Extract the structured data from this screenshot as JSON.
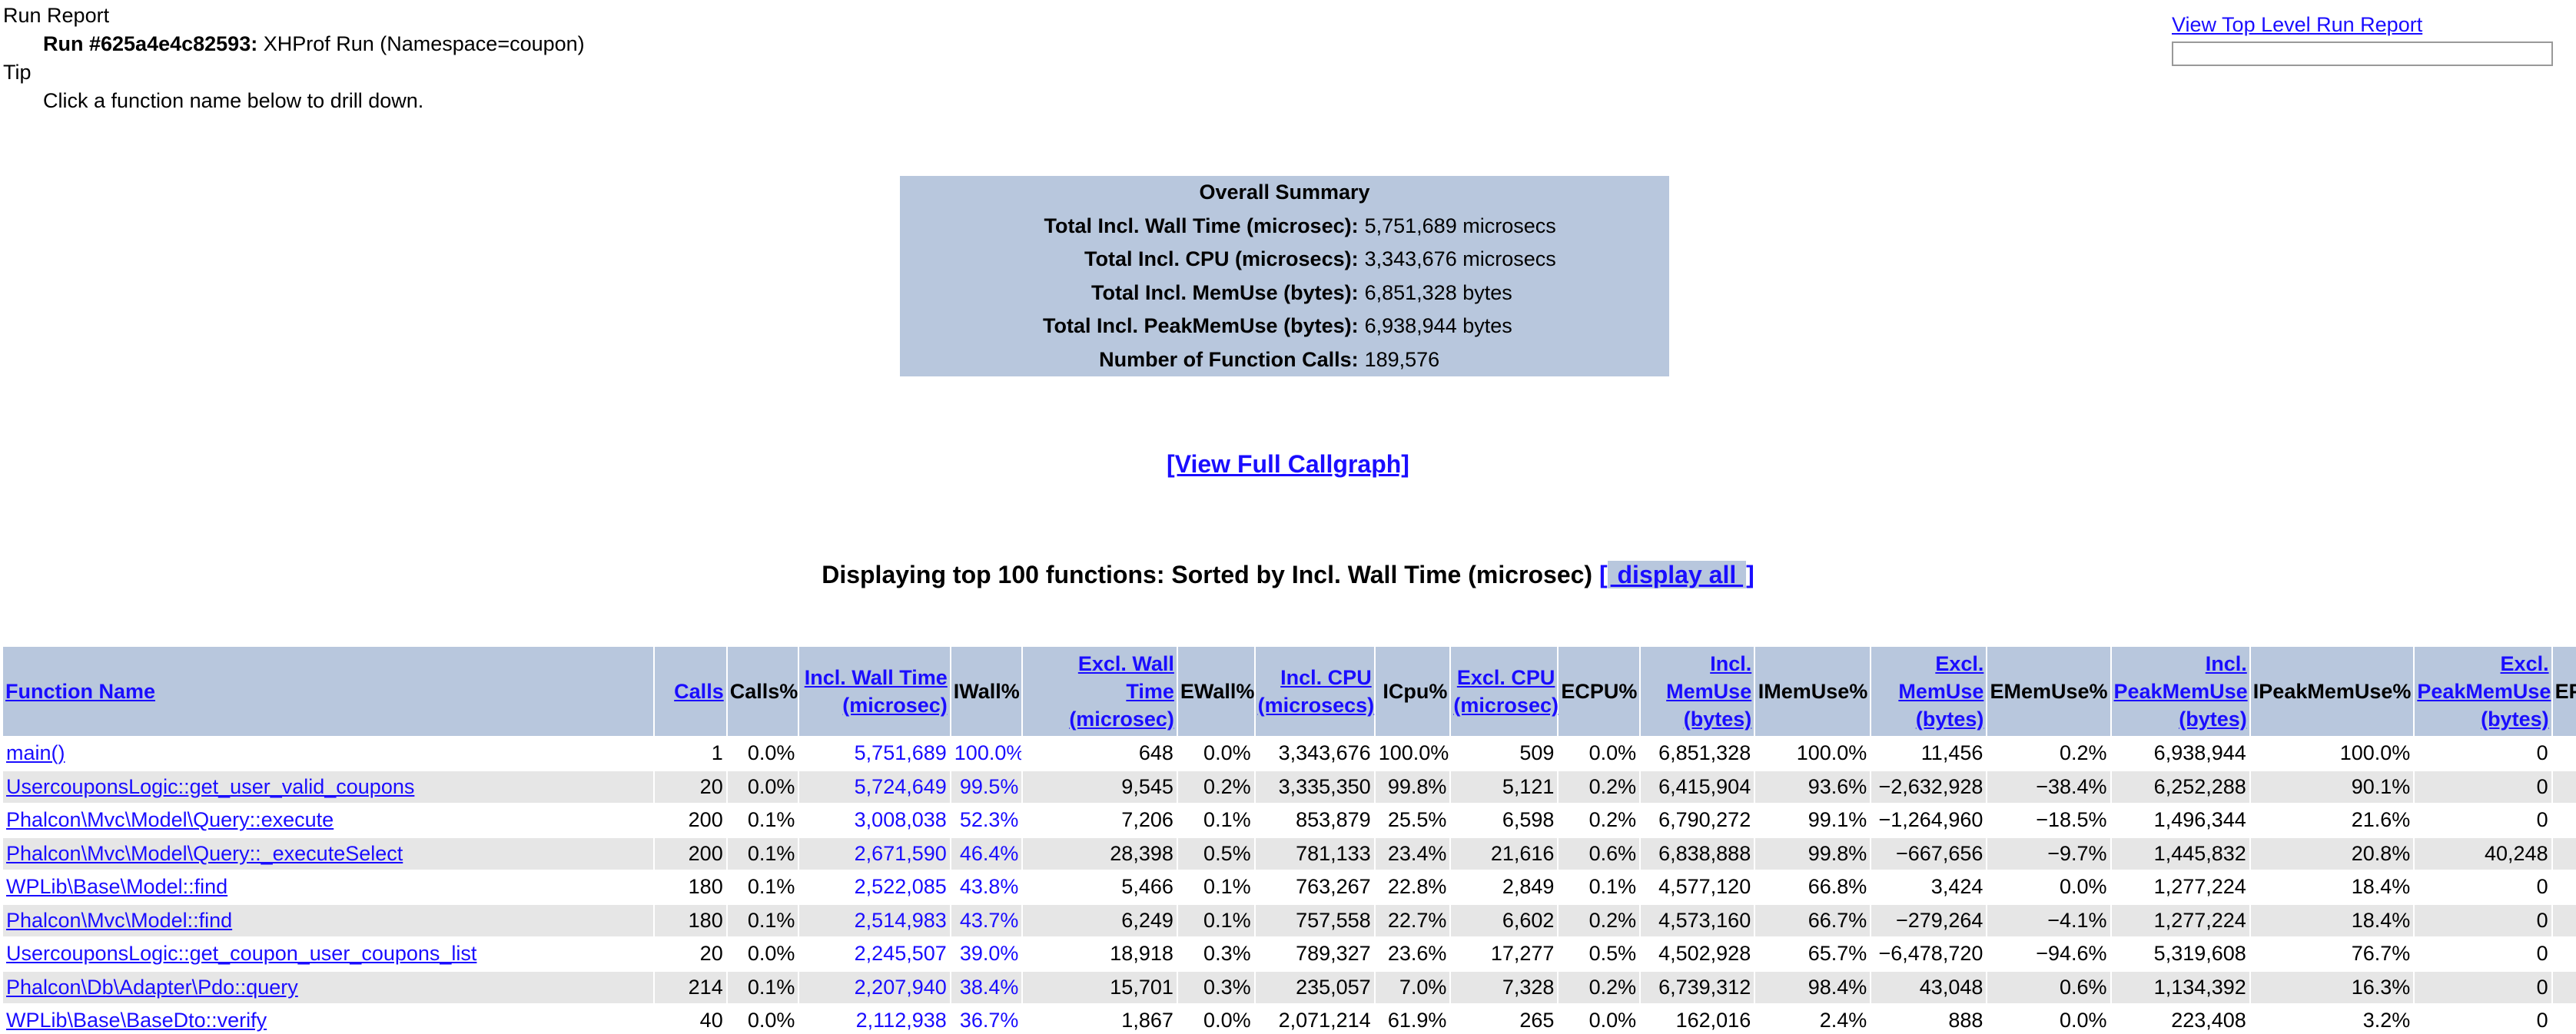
{
  "run_report": {
    "heading": "Run Report",
    "run_id": "Run #625a4e4c82593:",
    "run_desc": " XHProf Run (Namespace=coupon)",
    "tip_heading": "Tip",
    "tip_text": "Click a function name below to drill down."
  },
  "top_right": {
    "link": "View Top Level Run Report",
    "search_value": ""
  },
  "summary": {
    "title": "Overall Summary",
    "rows": [
      {
        "label": "Total Incl. Wall Time (microsec):",
        "value": "5,751,689 microsecs"
      },
      {
        "label": "Total Incl. CPU (microsecs):",
        "value": "3,343,676 microsecs"
      },
      {
        "label": "Total Incl. MemUse (bytes):",
        "value": "6,851,328 bytes"
      },
      {
        "label": "Total Incl. PeakMemUse (bytes):",
        "value": "6,938,944 bytes"
      },
      {
        "label": "Number of Function Calls:",
        "value": "189,576"
      }
    ]
  },
  "callgraph_link": "[View Full Callgraph]",
  "display_line": {
    "text": "Displaying top 100 functions: Sorted by Incl. Wall Time (microsec) ",
    "open": "[",
    "link": " display all ",
    "close": "]"
  },
  "table": {
    "headers": [
      {
        "lines": [
          "Function Name"
        ],
        "link": true,
        "align": "left"
      },
      {
        "lines": [
          "Calls"
        ],
        "link": true,
        "align": "right"
      },
      {
        "lines": [
          "Calls%"
        ],
        "link": false,
        "align": "right"
      },
      {
        "lines": [
          "Incl. Wall Time",
          "(microsec)"
        ],
        "link": true,
        "align": "right"
      },
      {
        "lines": [
          "IWall%"
        ],
        "link": false,
        "align": "right"
      },
      {
        "lines": [
          "Excl. Wall Time",
          "(microsec)"
        ],
        "link": true,
        "align": "right"
      },
      {
        "lines": [
          "EWall%"
        ],
        "link": false,
        "align": "right"
      },
      {
        "lines": [
          "Incl. CPU",
          "(microsecs)"
        ],
        "link": true,
        "align": "right"
      },
      {
        "lines": [
          "ICpu%"
        ],
        "link": false,
        "align": "right"
      },
      {
        "lines": [
          "Excl. CPU",
          "(microsec)"
        ],
        "link": true,
        "align": "right"
      },
      {
        "lines": [
          "ECPU%"
        ],
        "link": false,
        "align": "right"
      },
      {
        "lines": [
          "Incl.",
          "MemUse",
          "(bytes)"
        ],
        "link": true,
        "align": "right"
      },
      {
        "lines": [
          "IMemUse%"
        ],
        "link": false,
        "align": "right"
      },
      {
        "lines": [
          "Excl.",
          "MemUse",
          "(bytes)"
        ],
        "link": true,
        "align": "right"
      },
      {
        "lines": [
          "EMemUse%"
        ],
        "link": false,
        "align": "right"
      },
      {
        "lines": [
          "Incl.",
          "PeakMemUse",
          "(bytes)"
        ],
        "link": true,
        "align": "right"
      },
      {
        "lines": [
          "IPeakMemUse%"
        ],
        "link": false,
        "align": "right"
      },
      {
        "lines": [
          "Excl.",
          "PeakMemUse",
          "(bytes)"
        ],
        "link": true,
        "align": "right"
      },
      {
        "lines": [
          "EP"
        ],
        "link": false,
        "align": "left"
      }
    ],
    "rows": [
      [
        "main()",
        "1",
        "0.0%",
        "5,751,689",
        "100.0%",
        "648",
        "0.0%",
        "3,343,676",
        "100.0%",
        "509",
        "0.0%",
        "6,851,328",
        "100.0%",
        "11,456",
        "0.2%",
        "6,938,944",
        "100.0%",
        "0",
        ""
      ],
      [
        "UsercouponsLogic::get_user_valid_coupons",
        "20",
        "0.0%",
        "5,724,649",
        "99.5%",
        "9,545",
        "0.2%",
        "3,335,350",
        "99.8%",
        "5,121",
        "0.2%",
        "6,415,904",
        "93.6%",
        "−2,632,928",
        "−38.4%",
        "6,252,288",
        "90.1%",
        "0",
        ""
      ],
      [
        "Phalcon\\Mvc\\Model\\Query::execute",
        "200",
        "0.1%",
        "3,008,038",
        "52.3%",
        "7,206",
        "0.1%",
        "853,879",
        "25.5%",
        "6,598",
        "0.2%",
        "6,790,272",
        "99.1%",
        "−1,264,960",
        "−18.5%",
        "1,496,344",
        "21.6%",
        "0",
        ""
      ],
      [
        "Phalcon\\Mvc\\Model\\Query::_executeSelect",
        "200",
        "0.1%",
        "2,671,590",
        "46.4%",
        "28,398",
        "0.5%",
        "781,133",
        "23.4%",
        "21,616",
        "0.6%",
        "6,838,888",
        "99.8%",
        "−667,656",
        "−9.7%",
        "1,445,832",
        "20.8%",
        "40,248",
        ""
      ],
      [
        "WPLib\\Base\\Model::find",
        "180",
        "0.1%",
        "2,522,085",
        "43.8%",
        "5,466",
        "0.1%",
        "763,267",
        "22.8%",
        "2,849",
        "0.1%",
        "4,577,120",
        "66.8%",
        "3,424",
        "0.0%",
        "1,277,224",
        "18.4%",
        "0",
        ""
      ],
      [
        "Phalcon\\Mvc\\Model::find",
        "180",
        "0.1%",
        "2,514,983",
        "43.7%",
        "6,249",
        "0.1%",
        "757,558",
        "22.7%",
        "6,602",
        "0.2%",
        "4,573,160",
        "66.7%",
        "−279,264",
        "−4.1%",
        "1,277,224",
        "18.4%",
        "0",
        ""
      ],
      [
        "UsercouponsLogic::get_coupon_user_coupons_list",
        "20",
        "0.0%",
        "2,245,507",
        "39.0%",
        "18,918",
        "0.3%",
        "789,327",
        "23.6%",
        "17,277",
        "0.5%",
        "4,502,928",
        "65.7%",
        "−6,478,720",
        "−94.6%",
        "5,319,608",
        "76.7%",
        "0",
        ""
      ],
      [
        "Phalcon\\Db\\Adapter\\Pdo::query",
        "214",
        "0.1%",
        "2,207,940",
        "38.4%",
        "15,701",
        "0.3%",
        "235,057",
        "7.0%",
        "7,328",
        "0.2%",
        "6,739,312",
        "98.4%",
        "43,048",
        "0.6%",
        "1,134,392",
        "16.3%",
        "0",
        ""
      ],
      [
        "WPLib\\Base\\BaseDto::verify",
        "40",
        "0.0%",
        "2,112,938",
        "36.7%",
        "1,867",
        "0.0%",
        "2,071,214",
        "61.9%",
        "265",
        "0.0%",
        "162,016",
        "2.4%",
        "888",
        "0.0%",
        "223,408",
        "3.2%",
        "0",
        ""
      ]
    ]
  }
}
